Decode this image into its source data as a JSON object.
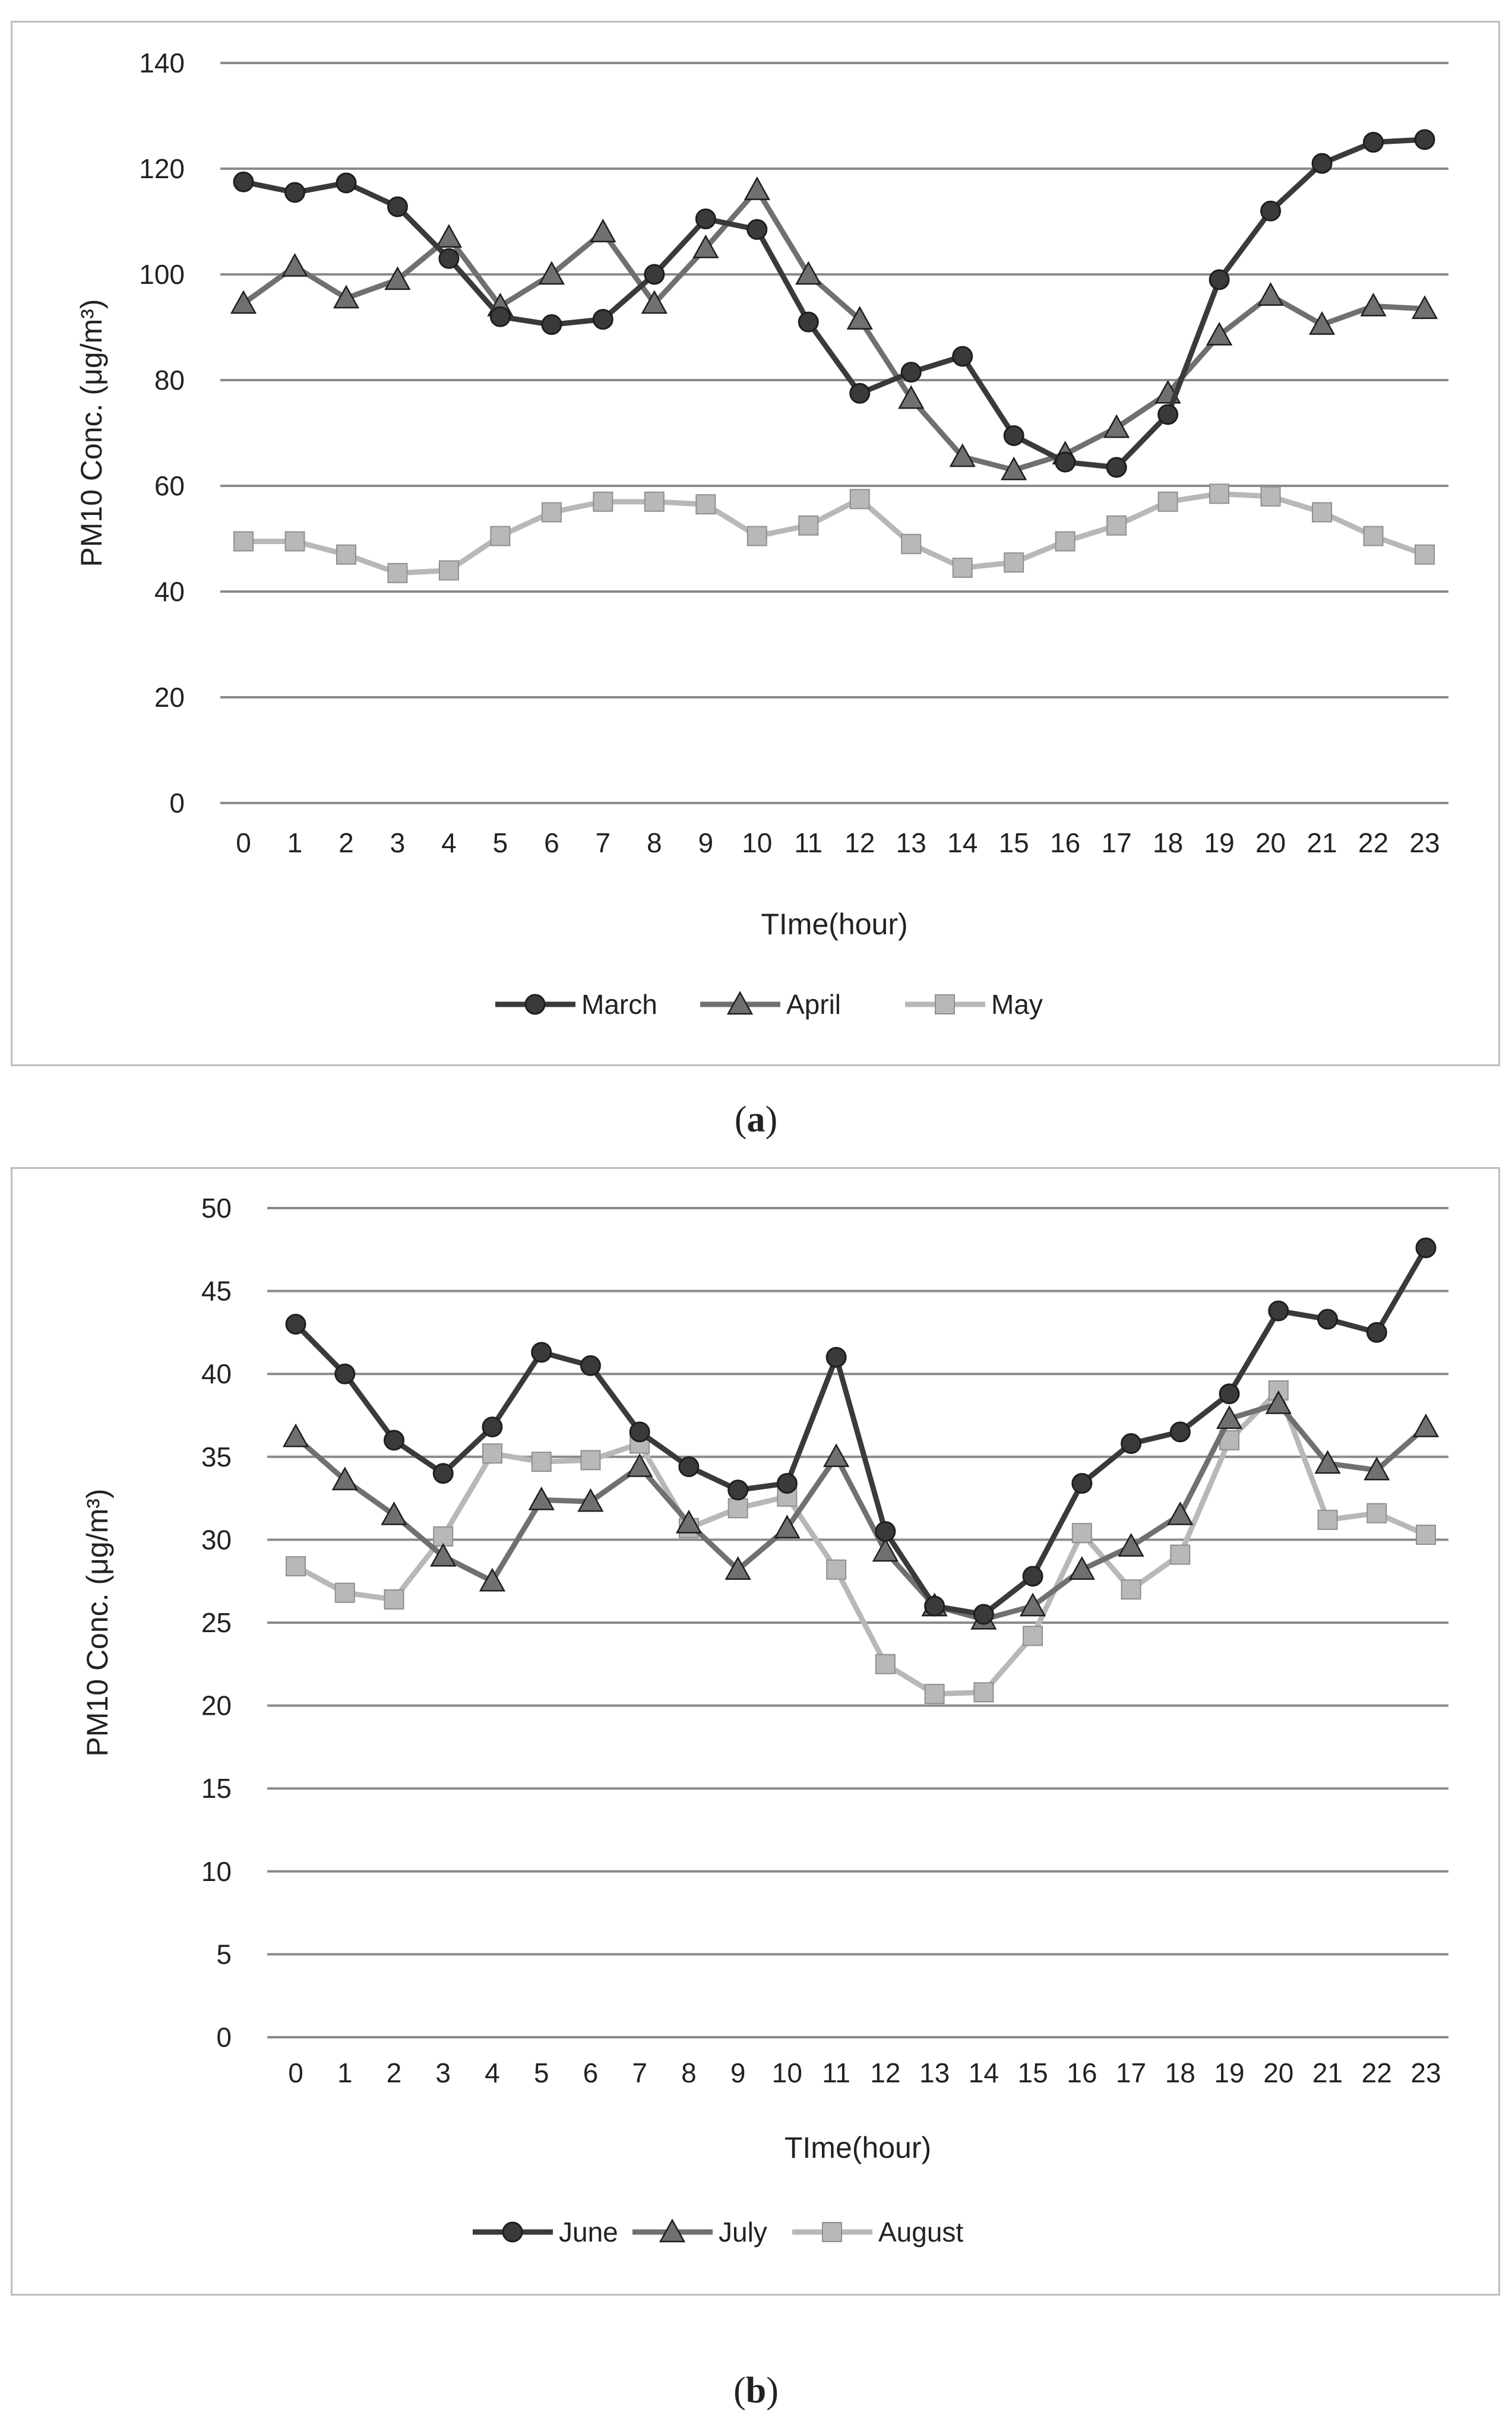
{
  "colors": {
    "s1": "#3a3a3a",
    "s2": "#707070",
    "s3": "#b8b8b8",
    "grid": "#8a8a8a"
  },
  "chart_data": [
    {
      "type": "line",
      "caption_letter": "a",
      "caption_open": "(",
      "caption_close": ")",
      "xlabel": "TIme(hour)",
      "ylabel": "PM10 Conc. (μg/m³)",
      "ylim": [
        0,
        140
      ],
      "ystep": 20,
      "categories": [
        "0",
        "1",
        "2",
        "3",
        "4",
        "5",
        "6",
        "7",
        "8",
        "9",
        "10",
        "11",
        "12",
        "13",
        "14",
        "15",
        "16",
        "17",
        "18",
        "19",
        "20",
        "21",
        "22",
        "23"
      ],
      "series": [
        {
          "name": "March",
          "marker": "circle",
          "values": [
            117.5,
            115.5,
            117.3,
            112.8,
            103,
            92,
            90.5,
            91.5,
            100,
            110.5,
            108.5,
            91,
            77.5,
            81.5,
            84.5,
            69.5,
            64.5,
            63.5,
            73.5,
            99,
            112,
            121,
            125,
            125.5
          ]
        },
        {
          "name": "April",
          "marker": "triangle",
          "values": [
            94.5,
            101.5,
            95.5,
            99,
            107,
            94,
            100,
            108,
            94.5,
            105,
            116,
            100,
            91.5,
            76.5,
            65.5,
            63,
            66,
            71,
            77.5,
            88.5,
            96,
            90.5,
            94,
            93.5
          ]
        },
        {
          "name": "May",
          "marker": "square",
          "values": [
            49.5,
            49.5,
            47,
            43.5,
            44,
            50.5,
            55,
            57,
            57,
            56.5,
            50.5,
            52.5,
            57.5,
            49,
            44.5,
            45.5,
            49.5,
            52.5,
            57,
            58.5,
            58,
            55,
            50.5,
            47
          ]
        }
      ]
    },
    {
      "type": "line",
      "caption_letter": "b",
      "caption_open": "(",
      "caption_close": ")",
      "xlabel": "TIme(hour)",
      "ylabel": "PM10 Conc. (μg/m³)",
      "ylim": [
        0,
        50
      ],
      "ystep": 5,
      "categories": [
        "0",
        "1",
        "2",
        "3",
        "4",
        "5",
        "6",
        "7",
        "8",
        "9",
        "10",
        "11",
        "12",
        "13",
        "14",
        "15",
        "16",
        "17",
        "18",
        "19",
        "20",
        "21",
        "22",
        "23"
      ],
      "series": [
        {
          "name": "June",
          "marker": "circle",
          "values": [
            43,
            40,
            36,
            34,
            36.8,
            41.3,
            40.5,
            36.5,
            34.4,
            33,
            33.4,
            41,
            30.5,
            26,
            25.5,
            27.8,
            33.4,
            35.8,
            36.5,
            38.8,
            43.8,
            43.3,
            42.5,
            47.6
          ]
        },
        {
          "name": "July",
          "marker": "triangle",
          "values": [
            36.2,
            33.6,
            31.5,
            29,
            27.5,
            32.4,
            32.3,
            34.4,
            31,
            28.2,
            30.7,
            35,
            29.3,
            26,
            25.2,
            26,
            28.2,
            29.6,
            31.5,
            37.3,
            38.2,
            34.6,
            34.2,
            36.8
          ]
        },
        {
          "name": "August",
          "marker": "square",
          "values": [
            28.4,
            26.8,
            26.4,
            30.2,
            35.2,
            34.7,
            34.8,
            35.8,
            30.7,
            31.9,
            32.6,
            28.2,
            22.5,
            20.7,
            20.8,
            24.2,
            30.4,
            27,
            29.1,
            36,
            39,
            31.2,
            31.6,
            30.3
          ]
        }
      ]
    }
  ]
}
